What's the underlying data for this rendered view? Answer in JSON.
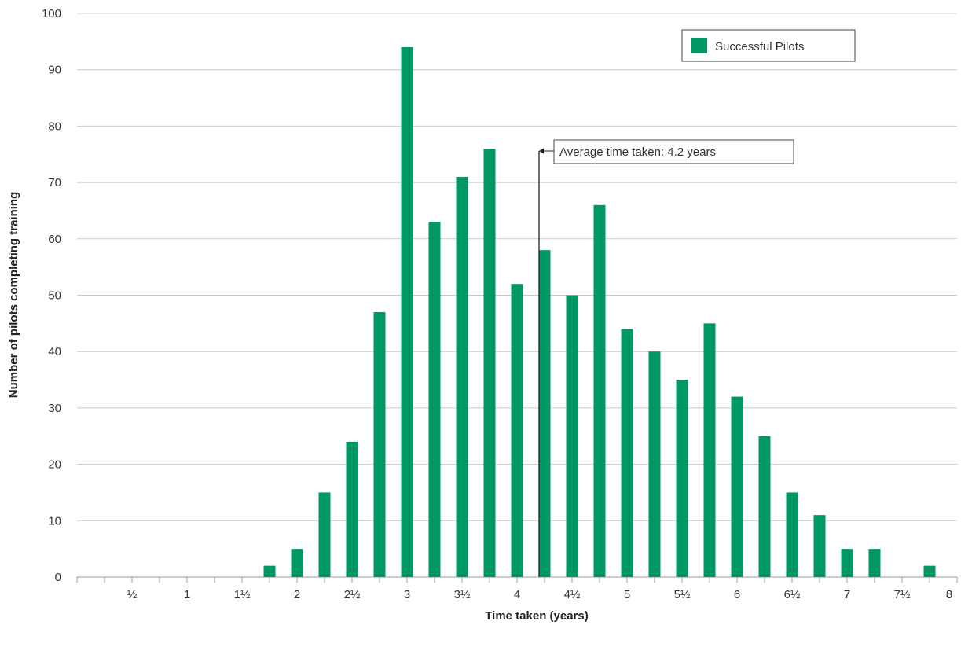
{
  "chart_data": {
    "type": "bar",
    "xlabel": "Time taken (years)",
    "ylabel": "Number of pilots completing training",
    "ylim": [
      0,
      100
    ],
    "yticks": [
      0,
      10,
      20,
      30,
      40,
      50,
      60,
      70,
      80,
      90,
      100
    ],
    "x_range": [
      0,
      8
    ],
    "grid": true,
    "legend_position": "top-right",
    "xtick_labels": [
      {
        "x": 0.5,
        "label": "½"
      },
      {
        "x": 1,
        "label": "1"
      },
      {
        "x": 1.5,
        "label": "1½"
      },
      {
        "x": 2,
        "label": "2"
      },
      {
        "x": 2.5,
        "label": "2½"
      },
      {
        "x": 3,
        "label": "3"
      },
      {
        "x": 3.5,
        "label": "3½"
      },
      {
        "x": 4,
        "label": "4"
      },
      {
        "x": 4.5,
        "label": "4½"
      },
      {
        "x": 5,
        "label": "5"
      },
      {
        "x": 5.5,
        "label": "5½"
      },
      {
        "x": 6,
        "label": "6"
      },
      {
        "x": 6.5,
        "label": "6½"
      },
      {
        "x": 7,
        "label": "7"
      },
      {
        "x": 7.5,
        "label": "7½"
      },
      {
        "x": 8,
        "label": "8"
      }
    ],
    "series": [
      {
        "name": "Successful Pilots",
        "color": "#009966",
        "x": [
          1.75,
          2.0,
          2.25,
          2.5,
          2.75,
          3.0,
          3.25,
          3.5,
          3.75,
          4.0,
          4.25,
          4.5,
          4.75,
          5.0,
          5.25,
          5.5,
          5.75,
          6.0,
          6.25,
          6.5,
          6.75,
          7.0,
          7.25,
          7.5,
          7.75
        ],
        "values": [
          2,
          5,
          15,
          24,
          47,
          94,
          63,
          71,
          76,
          52,
          58,
          50,
          66,
          44,
          40,
          35,
          45,
          32,
          25,
          15,
          11,
          5,
          5,
          0,
          2
        ]
      }
    ],
    "annotations": [
      {
        "text": "Average time taken: 4.2 years",
        "x": 4.2
      }
    ]
  }
}
